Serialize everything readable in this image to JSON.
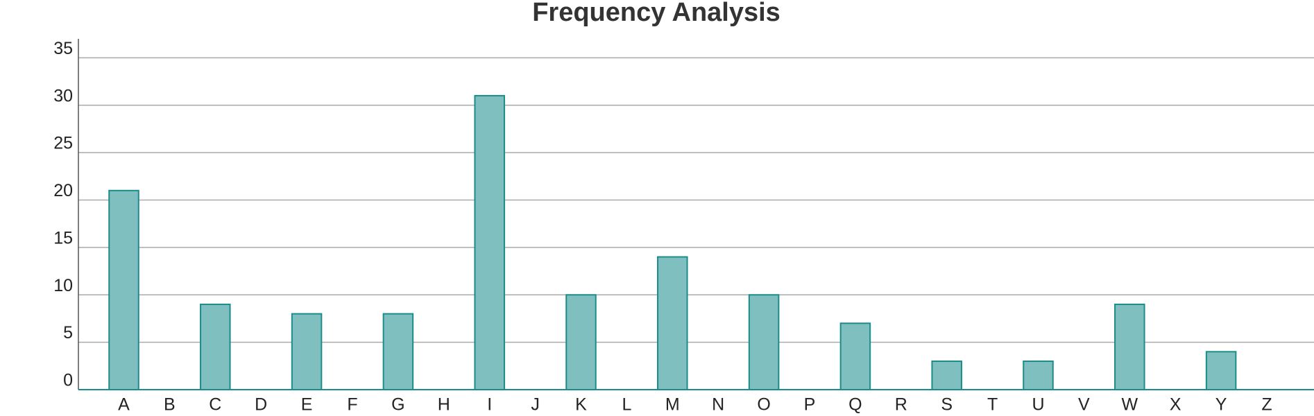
{
  "chart_data": {
    "type": "bar",
    "title": "Frequency Analysis",
    "categories": [
      "A",
      "B",
      "C",
      "D",
      "E",
      "F",
      "G",
      "H",
      "I",
      "J",
      "K",
      "L",
      "M",
      "N",
      "O",
      "P",
      "Q",
      "R",
      "S",
      "T",
      "U",
      "V",
      "W",
      "X",
      "Y",
      "Z"
    ],
    "values": [
      21,
      0,
      9,
      0,
      8,
      0,
      8,
      0,
      31,
      0,
      10,
      0,
      14,
      0,
      10,
      0,
      7,
      0,
      3,
      0,
      3,
      0,
      9,
      0,
      4,
      0
    ],
    "color": "#80bfbf",
    "edgecolor": "#1a8c8a",
    "ylim": [
      0,
      37
    ],
    "yticks": [
      0,
      5,
      10,
      15,
      20,
      25,
      30,
      35
    ],
    "grid": true
  }
}
